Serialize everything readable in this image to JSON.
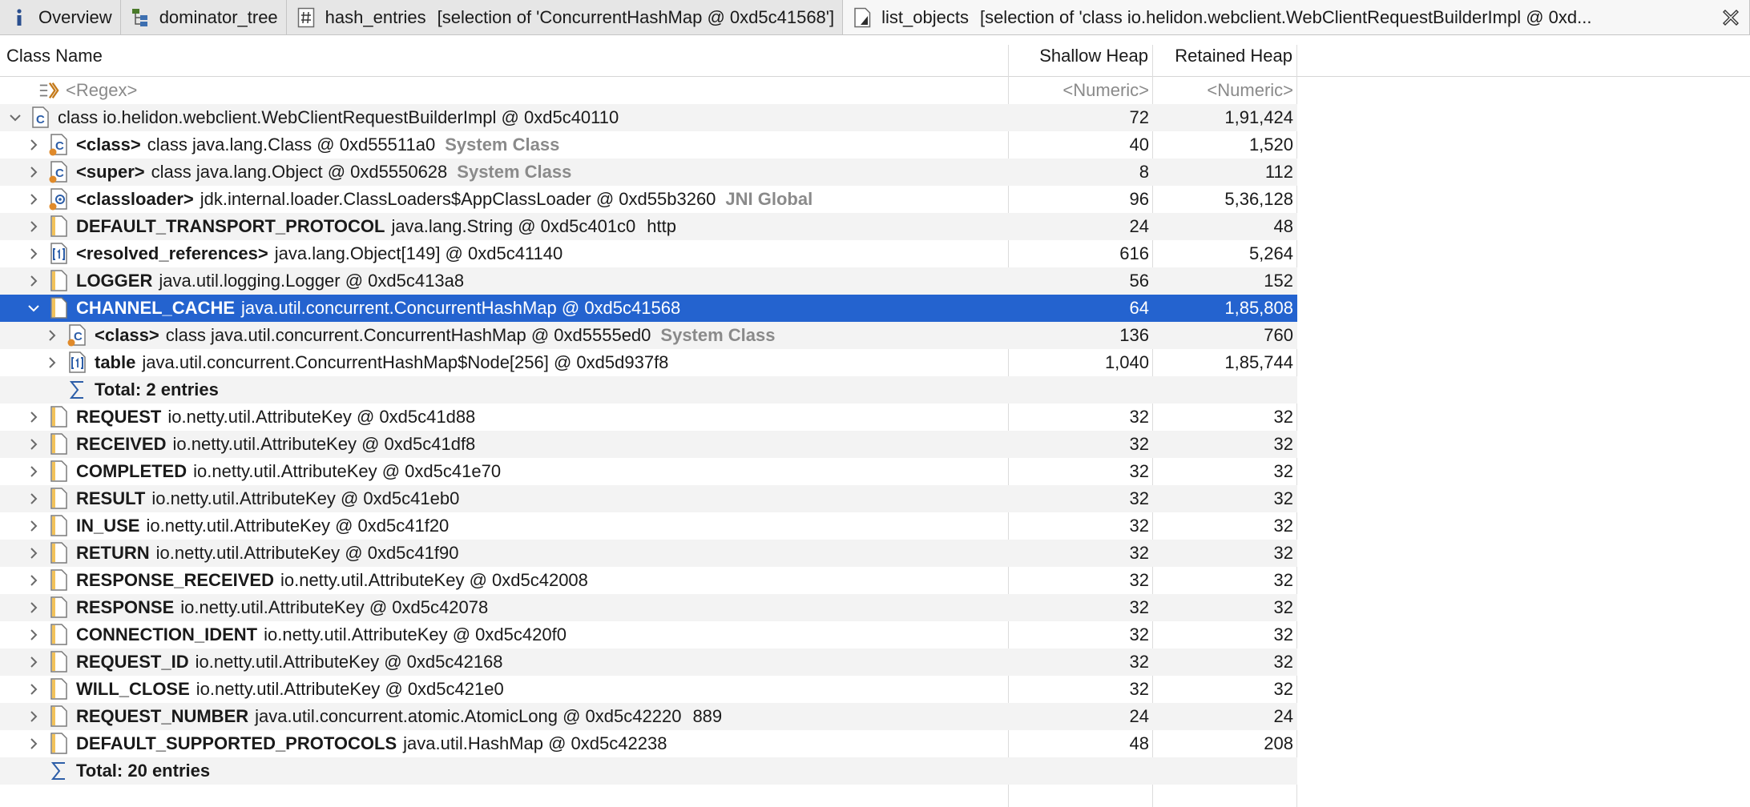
{
  "tabs": [
    {
      "title": "Overview",
      "subtitle": "",
      "icon": "info-icon"
    },
    {
      "title": "dominator_tree",
      "subtitle": "",
      "icon": "tree-icon"
    },
    {
      "title": "hash_entries",
      "subtitle": "[selection of 'ConcurrentHashMap @ 0xd5c41568']",
      "icon": "hash-table-icon"
    },
    {
      "title": "list_objects",
      "subtitle": "[selection of 'class io.helidon.webclient.WebClientRequestBuilderImpl @ 0xd...",
      "icon": "list-objects-icon"
    }
  ],
  "columns": {
    "name": "Class Name",
    "shallow": "Shallow Heap",
    "retained": "Retained Heap"
  },
  "filter": {
    "name": "<Regex>",
    "shallow": "<Numeric>",
    "retained": "<Numeric>"
  },
  "rows": [
    {
      "indent": 0,
      "expander": "expanded",
      "icon": "class-icon",
      "bold": "",
      "text": "class io.helidon.webclient.WebClientRequestBuilderImpl @ 0xd5c40110",
      "tag": "",
      "value": "",
      "shallow": "72",
      "retained": "1,91,424"
    },
    {
      "indent": 1,
      "expander": "collapsed",
      "icon": "class-static-icon",
      "bold": "<class>",
      "text": "class java.lang.Class @ 0xd55511a0",
      "tag": "System Class",
      "value": "",
      "shallow": "40",
      "retained": "1,520"
    },
    {
      "indent": 1,
      "expander": "collapsed",
      "icon": "class-static-icon",
      "bold": "<super>",
      "text": "class java.lang.Object @ 0xd5550628",
      "tag": "System Class",
      "value": "",
      "shallow": "8",
      "retained": "112"
    },
    {
      "indent": 1,
      "expander": "collapsed",
      "icon": "classloader-icon",
      "bold": "<classloader>",
      "text": "jdk.internal.loader.ClassLoaders$AppClassLoader @ 0xd55b3260",
      "tag": "JNI Global",
      "value": "",
      "shallow": "96",
      "retained": "5,36,128"
    },
    {
      "indent": 1,
      "expander": "collapsed",
      "icon": "object-icon",
      "bold": "DEFAULT_TRANSPORT_PROTOCOL",
      "text": "java.lang.String @ 0xd5c401c0",
      "tag": "",
      "value": "http",
      "shallow": "24",
      "retained": "48"
    },
    {
      "indent": 1,
      "expander": "collapsed",
      "icon": "array-icon",
      "bold": "<resolved_references>",
      "text": "java.lang.Object[149] @ 0xd5c41140",
      "tag": "",
      "value": "",
      "shallow": "616",
      "retained": "5,264"
    },
    {
      "indent": 1,
      "expander": "collapsed",
      "icon": "object-icon",
      "bold": "LOGGER",
      "text": "java.util.logging.Logger @ 0xd5c413a8",
      "tag": "",
      "value": "",
      "shallow": "56",
      "retained": "152"
    },
    {
      "indent": 1,
      "expander": "expanded",
      "icon": "object-icon",
      "bold": "CHANNEL_CACHE",
      "text": "java.util.concurrent.ConcurrentHashMap @ 0xd5c41568",
      "tag": "",
      "value": "",
      "shallow": "64",
      "retained": "1,85,808",
      "selected": true
    },
    {
      "indent": 2,
      "expander": "collapsed",
      "icon": "class-static-icon",
      "bold": "<class>",
      "text": "class java.util.concurrent.ConcurrentHashMap @ 0xd5555ed0",
      "tag": "System Class",
      "value": "",
      "shallow": "136",
      "retained": "760"
    },
    {
      "indent": 2,
      "expander": "collapsed",
      "icon": "array-icon",
      "bold": "table",
      "text": "java.util.concurrent.ConcurrentHashMap$Node[256] @ 0xd5d937f8",
      "tag": "",
      "value": "",
      "shallow": "1,040",
      "retained": "1,85,744"
    },
    {
      "indent": 2,
      "expander": "none",
      "icon": "sigma-icon",
      "bold": "Total: 2 entries",
      "text": "",
      "tag": "",
      "value": "",
      "shallow": "",
      "retained": ""
    },
    {
      "indent": 1,
      "expander": "collapsed",
      "icon": "object-icon",
      "bold": "REQUEST",
      "text": "io.netty.util.AttributeKey @ 0xd5c41d88",
      "tag": "",
      "value": "",
      "shallow": "32",
      "retained": "32"
    },
    {
      "indent": 1,
      "expander": "collapsed",
      "icon": "object-icon",
      "bold": "RECEIVED",
      "text": "io.netty.util.AttributeKey @ 0xd5c41df8",
      "tag": "",
      "value": "",
      "shallow": "32",
      "retained": "32"
    },
    {
      "indent": 1,
      "expander": "collapsed",
      "icon": "object-icon",
      "bold": "COMPLETED",
      "text": "io.netty.util.AttributeKey @ 0xd5c41e70",
      "tag": "",
      "value": "",
      "shallow": "32",
      "retained": "32"
    },
    {
      "indent": 1,
      "expander": "collapsed",
      "icon": "object-icon",
      "bold": "RESULT",
      "text": "io.netty.util.AttributeKey @ 0xd5c41eb0",
      "tag": "",
      "value": "",
      "shallow": "32",
      "retained": "32"
    },
    {
      "indent": 1,
      "expander": "collapsed",
      "icon": "object-icon",
      "bold": "IN_USE",
      "text": "io.netty.util.AttributeKey @ 0xd5c41f20",
      "tag": "",
      "value": "",
      "shallow": "32",
      "retained": "32"
    },
    {
      "indent": 1,
      "expander": "collapsed",
      "icon": "object-icon",
      "bold": "RETURN",
      "text": "io.netty.util.AttributeKey @ 0xd5c41f90",
      "tag": "",
      "value": "",
      "shallow": "32",
      "retained": "32"
    },
    {
      "indent": 1,
      "expander": "collapsed",
      "icon": "object-icon",
      "bold": "RESPONSE_RECEIVED",
      "text": "io.netty.util.AttributeKey @ 0xd5c42008",
      "tag": "",
      "value": "",
      "shallow": "32",
      "retained": "32"
    },
    {
      "indent": 1,
      "expander": "collapsed",
      "icon": "object-icon",
      "bold": "RESPONSE",
      "text": "io.netty.util.AttributeKey @ 0xd5c42078",
      "tag": "",
      "value": "",
      "shallow": "32",
      "retained": "32"
    },
    {
      "indent": 1,
      "expander": "collapsed",
      "icon": "object-icon",
      "bold": "CONNECTION_IDENT",
      "text": "io.netty.util.AttributeKey @ 0xd5c420f0",
      "tag": "",
      "value": "",
      "shallow": "32",
      "retained": "32"
    },
    {
      "indent": 1,
      "expander": "collapsed",
      "icon": "object-icon",
      "bold": "REQUEST_ID",
      "text": "io.netty.util.AttributeKey @ 0xd5c42168",
      "tag": "",
      "value": "",
      "shallow": "32",
      "retained": "32"
    },
    {
      "indent": 1,
      "expander": "collapsed",
      "icon": "object-icon",
      "bold": "WILL_CLOSE",
      "text": "io.netty.util.AttributeKey @ 0xd5c421e0",
      "tag": "",
      "value": "",
      "shallow": "32",
      "retained": "32"
    },
    {
      "indent": 1,
      "expander": "collapsed",
      "icon": "object-icon",
      "bold": "REQUEST_NUMBER",
      "text": "java.util.concurrent.atomic.AtomicLong @ 0xd5c42220",
      "tag": "",
      "value": "889",
      "shallow": "24",
      "retained": "24"
    },
    {
      "indent": 1,
      "expander": "collapsed",
      "icon": "object-icon",
      "bold": "DEFAULT_SUPPORTED_PROTOCOLS",
      "text": "java.util.HashMap @ 0xd5c42238",
      "tag": "",
      "value": "",
      "shallow": "48",
      "retained": "208"
    },
    {
      "indent": 1,
      "expander": "none",
      "icon": "sigma-icon",
      "bold": "Total: 20 entries",
      "text": "",
      "tag": "",
      "value": "",
      "shallow": "",
      "retained": ""
    }
  ],
  "colors": {
    "selection": "#2463cf",
    "alt_row": "#f3f3f3",
    "tag": "#8a8a8a"
  }
}
